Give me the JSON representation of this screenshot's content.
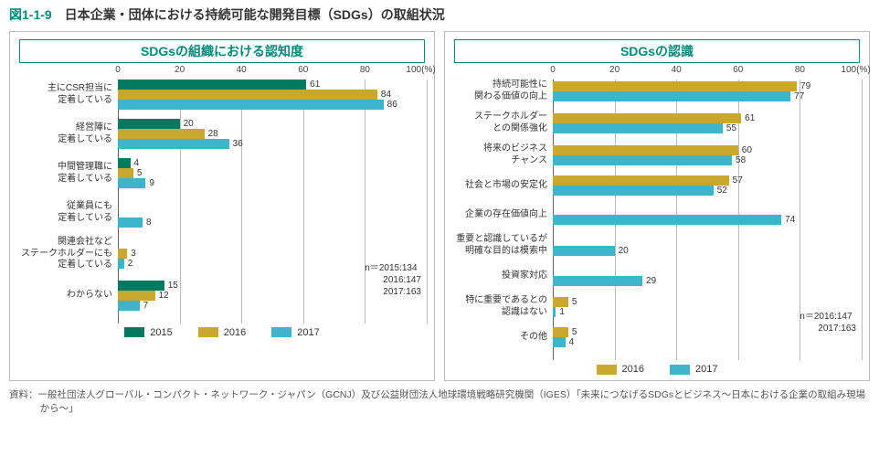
{
  "figureNumber": "図1-1-9",
  "figureTitle": "日本企業・団体における持続可能な開発目標（SDGs）の取組状況",
  "colors": {
    "c2015": "#007a5e",
    "c2016": "#c7a82a",
    "c2017": "#3db4cc",
    "border": "#bbbbbb",
    "titleAccent": "#00897b"
  },
  "axis": {
    "xmin": 0,
    "xmax": 100,
    "ticks": [
      0,
      20,
      40,
      60,
      80,
      100
    ],
    "unit": "100(%)"
  },
  "leftChart": {
    "title": "SDGsの組織における認知度",
    "series": [
      "2015",
      "2016",
      "2017"
    ],
    "categories": [
      {
        "label": "主にCSR担当に\n定着している",
        "values": [
          61,
          84,
          86
        ]
      },
      {
        "label": "経営陣に\n定着している",
        "values": [
          20,
          28,
          36
        ]
      },
      {
        "label": "中間管理職に\n定着している",
        "values": [
          4,
          5,
          9
        ]
      },
      {
        "label": "従業員にも\n定着している",
        "values": [
          null,
          null,
          8
        ]
      },
      {
        "label": "関連会社など\nステークホルダーにも\n定着している",
        "values": [
          null,
          3,
          2
        ]
      },
      {
        "label": "わからない",
        "values": [
          15,
          12,
          7
        ]
      }
    ],
    "nNote": "n＝2015:134\n　　2016:147\n　　2017:163",
    "legend": [
      "2015",
      "2016",
      "2017"
    ]
  },
  "rightChart": {
    "title": "SDGsの認識",
    "series": [
      "2016",
      "2017"
    ],
    "categories": [
      {
        "label": "持続可能性に\n関わる価値の向上",
        "values": [
          79,
          77
        ]
      },
      {
        "label": "ステークホルダー\nとの関係強化",
        "values": [
          61,
          55
        ]
      },
      {
        "label": "将来のビジネス\nチャンス",
        "values": [
          60,
          58
        ]
      },
      {
        "label": "社会と市場の安定化",
        "values": [
          57,
          52
        ]
      },
      {
        "label": "企業の存在価値向上",
        "values": [
          null,
          74
        ]
      },
      {
        "label": "重要と認識しているが\n明確な目的は模索中",
        "values": [
          null,
          20
        ]
      },
      {
        "label": "投資家対応",
        "values": [
          null,
          29
        ]
      },
      {
        "label": "特に重要であるとの\n認識はない",
        "values": [
          5,
          1
        ]
      },
      {
        "label": "その他",
        "values": [
          5,
          4
        ]
      }
    ],
    "nNote": "n＝2016:147\n　　2017:163",
    "legend": [
      "2016",
      "2017"
    ]
  },
  "source": "資料：一般社団法人グローバル・コンパクト・ネットワーク・ジャパン（GCNJ）及び公益財団法人地球環境戦略研究機関（IGES）「未来につなげるSDGsとビジネス〜日本における企業の取組み現場から〜」"
}
